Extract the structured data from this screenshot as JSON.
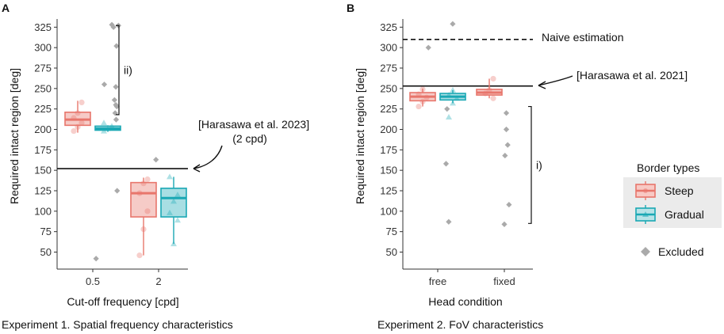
{
  "chart_data": [
    {
      "type": "box",
      "panel": "A",
      "caption": "Experiment 1. Spatial frequency characteristics",
      "xlabel": "Cut-off frequency [cpd]",
      "ylabel": "Required intact region [deg]",
      "categories": [
        "0.5",
        "2"
      ],
      "ylim": [
        35,
        335
      ],
      "yticks": [
        50,
        75,
        100,
        125,
        150,
        175,
        200,
        225,
        250,
        275,
        300,
        325
      ],
      "series": [
        {
          "name": "Steep",
          "color": "#e8766c",
          "boxes": [
            {
              "category": "0.5",
              "q1": 205,
              "median": 212,
              "q3": 221,
              "whisker_low": 196,
              "whisker_high": 235
            },
            {
              "category": "2",
              "q1": 93,
              "median": 122,
              "q3": 135,
              "whisker_low": 46,
              "whisker_high": 141
            }
          ],
          "points": [
            {
              "category": "0.5",
              "y": 198
            },
            {
              "category": "0.5",
              "y": 203
            },
            {
              "category": "0.5",
              "y": 208
            },
            {
              "category": "0.5",
              "y": 214
            },
            {
              "category": "0.5",
              "y": 220
            },
            {
              "category": "0.5",
              "y": 233
            },
            {
              "category": "2",
              "y": 46
            },
            {
              "category": "2",
              "y": 78
            },
            {
              "category": "2",
              "y": 100
            },
            {
              "category": "2",
              "y": 122
            },
            {
              "category": "2",
              "y": 134
            },
            {
              "category": "2",
              "y": 139
            }
          ]
        },
        {
          "name": "Gradual",
          "color": "#1aa8b4",
          "boxes": [
            {
              "category": "0.5",
              "q1": 199,
              "median": 201,
              "q3": 204,
              "whisker_low": 197,
              "whisker_high": 205
            },
            {
              "category": "2",
              "q1": 93,
              "median": 116,
              "q3": 128,
              "whisker_low": 60,
              "whisker_high": 142
            }
          ],
          "points": [
            {
              "category": "0.5",
              "y": 198
            },
            {
              "category": "0.5",
              "y": 201
            },
            {
              "category": "0.5",
              "y": 204
            },
            {
              "category": "0.5",
              "y": 208
            },
            {
              "category": "2",
              "y": 60
            },
            {
              "category": "2",
              "y": 89
            },
            {
              "category": "2",
              "y": 98
            },
            {
              "category": "2",
              "y": 112
            },
            {
              "category": "2",
              "y": 120
            },
            {
              "category": "2",
              "y": 142
            }
          ]
        }
      ],
      "excluded": [
        {
          "category": "0.5",
          "x_offset": 0.1,
          "y": 42
        },
        {
          "category": "0.5",
          "x_offset": 0.35,
          "y": 255
        },
        {
          "category": "0.5",
          "x_offset": 0.58,
          "y": 328
        },
        {
          "category": "0.5",
          "x_offset": 0.63,
          "y": 325
        },
        {
          "category": "0.5",
          "x_offset": 0.72,
          "y": 302
        },
        {
          "category": "0.5",
          "x_offset": 0.78,
          "y": 327
        },
        {
          "category": "0.5",
          "x_offset": 0.7,
          "y": 252
        },
        {
          "category": "0.5",
          "x_offset": 0.66,
          "y": 236
        },
        {
          "category": "0.5",
          "x_offset": 0.7,
          "y": 230
        },
        {
          "category": "0.5",
          "x_offset": 0.73,
          "y": 228
        },
        {
          "category": "0.5",
          "x_offset": 0.68,
          "y": 220
        },
        {
          "category": "0.5",
          "x_offset": 0.71,
          "y": 212
        },
        {
          "category": "0.5",
          "x_offset": 0.74,
          "y": 125
        },
        {
          "category": "2",
          "x_offset": -0.08,
          "y": 163
        }
      ],
      "reference_lines": [
        {
          "y": 152,
          "style": "solid",
          "label": "[Harasawa et al. 2023]",
          "sublabel": "(2 cpd)"
        }
      ],
      "annotations": [
        {
          "type": "bracket",
          "from": 218,
          "to": 327,
          "label": "ii)"
        }
      ]
    },
    {
      "type": "box",
      "panel": "B",
      "caption": "Experiment 2. FoV characteristics",
      "xlabel": "Head condition",
      "ylabel": "Required intact region [deg]",
      "categories": [
        "free",
        "fixed"
      ],
      "ylim": [
        35,
        335
      ],
      "yticks": [
        50,
        75,
        100,
        125,
        150,
        175,
        200,
        225,
        250,
        275,
        300,
        325
      ],
      "series": [
        {
          "name": "Steep",
          "color": "#e8766c",
          "boxes": [
            {
              "category": "free",
              "q1": 235,
              "median": 240,
              "q3": 245,
              "whisker_low": 228,
              "whisker_high": 250
            },
            {
              "category": "fixed",
              "q1": 242,
              "median": 245,
              "q3": 249,
              "whisker_low": 238,
              "whisker_high": 262
            }
          ],
          "points": [
            {
              "category": "free",
              "y": 228
            },
            {
              "category": "free",
              "y": 234
            },
            {
              "category": "free",
              "y": 239
            },
            {
              "category": "free",
              "y": 243
            },
            {
              "category": "free",
              "y": 249
            },
            {
              "category": "fixed",
              "y": 238
            },
            {
              "category": "fixed",
              "y": 244
            },
            {
              "category": "fixed",
              "y": 248
            },
            {
              "category": "fixed",
              "y": 262
            }
          ]
        },
        {
          "name": "Gradual",
          "color": "#1aa8b4",
          "boxes": [
            {
              "category": "free",
              "q1": 236,
              "median": 240,
              "q3": 244,
              "whisker_low": 232,
              "whisker_high": 248
            }
          ],
          "points": [
            {
              "category": "free",
              "y": 215
            },
            {
              "category": "free",
              "y": 232
            },
            {
              "category": "free",
              "y": 238
            },
            {
              "category": "free",
              "y": 242
            },
            {
              "category": "free",
              "y": 248
            }
          ]
        }
      ],
      "excluded": [
        {
          "category": "free",
          "x_offset": -0.28,
          "y": 300
        },
        {
          "category": "free",
          "x_offset": 0.45,
          "y": 329
        },
        {
          "category": "free",
          "x_offset": 0.28,
          "y": 225
        },
        {
          "category": "free",
          "x_offset": 0.25,
          "y": 158
        },
        {
          "category": "free",
          "x_offset": 0.33,
          "y": 87
        },
        {
          "category": "fixed",
          "x_offset": 0.06,
          "y": 220
        },
        {
          "category": "fixed",
          "x_offset": 0.06,
          "y": 200
        },
        {
          "category": "fixed",
          "x_offset": 0.1,
          "y": 181
        },
        {
          "category": "fixed",
          "x_offset": 0.02,
          "y": 168
        },
        {
          "category": "fixed",
          "x_offset": 0.14,
          "y": 108
        },
        {
          "category": "fixed",
          "x_offset": 0.0,
          "y": 84
        }
      ],
      "reference_lines": [
        {
          "y": 310,
          "style": "dashed",
          "label": "Naive estimation"
        },
        {
          "y": 253,
          "style": "solid",
          "label": "[Harasawa et al. 2021]"
        }
      ],
      "annotations": [
        {
          "type": "bracket",
          "from": 85,
          "to": 228,
          "label": "i)"
        }
      ]
    }
  ],
  "legend": {
    "title": "Border types",
    "items": [
      {
        "label": "Steep",
        "color": "#e8766c"
      },
      {
        "label": "Gradual",
        "color": "#1aa8b4"
      }
    ],
    "excluded_label": "Excluded",
    "excluded_color": "#aaaaaa"
  }
}
